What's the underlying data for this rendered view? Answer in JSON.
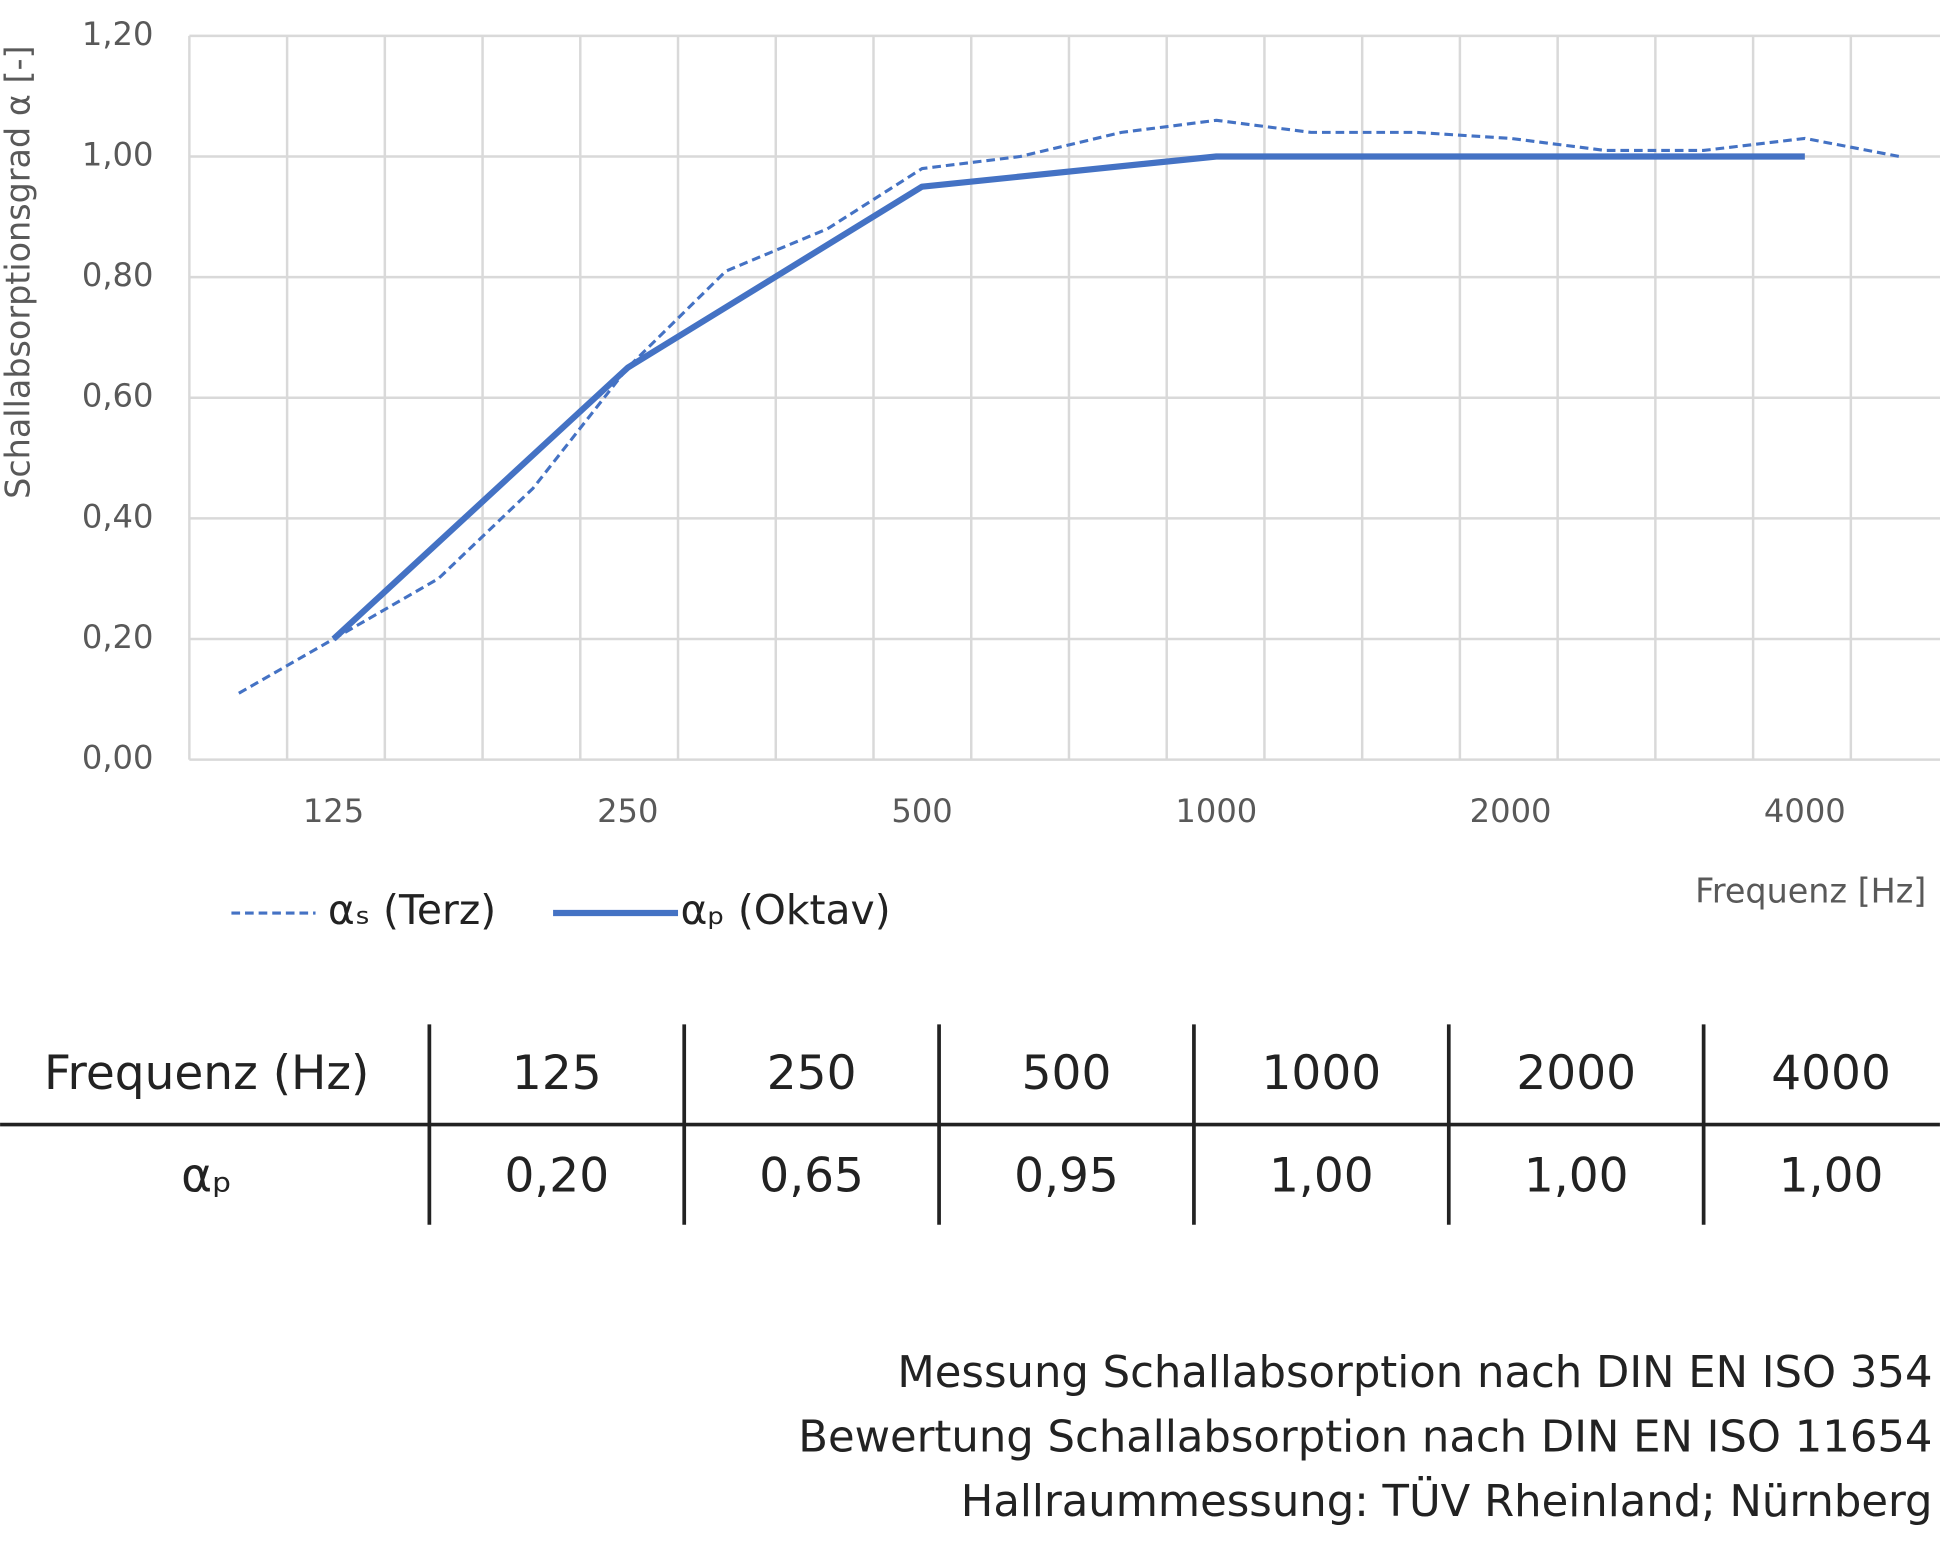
{
  "chart_data": {
    "type": "line",
    "y_label": "Schallabsorptionsgrad α [-]",
    "x_label": "Frequenz [Hz]",
    "xscale": "log",
    "xlim": [
      89,
      5612
    ],
    "xticks": [
      125,
      250,
      500,
      1000,
      2000,
      4000
    ],
    "ylim": [
      0,
      1.2
    ],
    "yticks": [
      {
        "value": 0,
        "label": "0,00"
      },
      {
        "value": 0.2,
        "label": "0,20"
      },
      {
        "value": 0.4,
        "label": "0,40"
      },
      {
        "value": 0.6,
        "label": "0,60"
      },
      {
        "value": 0.8,
        "label": "0,80"
      },
      {
        "value": 1.0,
        "label": "1,00"
      },
      {
        "value": 1.2,
        "label": "1,20"
      }
    ],
    "grid": true,
    "series": [
      {
        "name": "αₛ (Terz)",
        "color": "#4472c4",
        "style": "dashed",
        "x": [
          100,
          125,
          160,
          200,
          250,
          315,
          400,
          500,
          630,
          800,
          1000,
          1250,
          1600,
          2000,
          2500,
          3150,
          4000,
          5000
        ],
        "values": [
          0.11,
          0.2,
          0.3,
          0.45,
          0.65,
          0.81,
          0.88,
          0.98,
          1.0,
          1.04,
          1.06,
          1.04,
          1.04,
          1.03,
          1.01,
          1.01,
          1.03,
          1.0
        ]
      },
      {
        "name": "αₚ (Oktav)",
        "color": "#4472c4",
        "style": "solid",
        "x": [
          125,
          250,
          500,
          1000,
          2000,
          4000
        ],
        "values": [
          0.2,
          0.65,
          0.95,
          1.0,
          1.0,
          1.0
        ]
      }
    ]
  },
  "table": {
    "header": [
      "Frequenz (Hz)",
      "125",
      "250",
      "500",
      "1000",
      "2000",
      "4000"
    ],
    "rows": [
      [
        "αₚ",
        "0,20",
        "0,65",
        "0,95",
        "1,00",
        "1,00",
        "1,00"
      ]
    ]
  },
  "footnotes": [
    "Messung Schallabsorption nach DIN EN ISO 354",
    "Bewertung Schallabsorption nach DIN EN ISO 11654",
    "Hallraummessung: TÜV Rheinland; Nürnberg"
  ]
}
